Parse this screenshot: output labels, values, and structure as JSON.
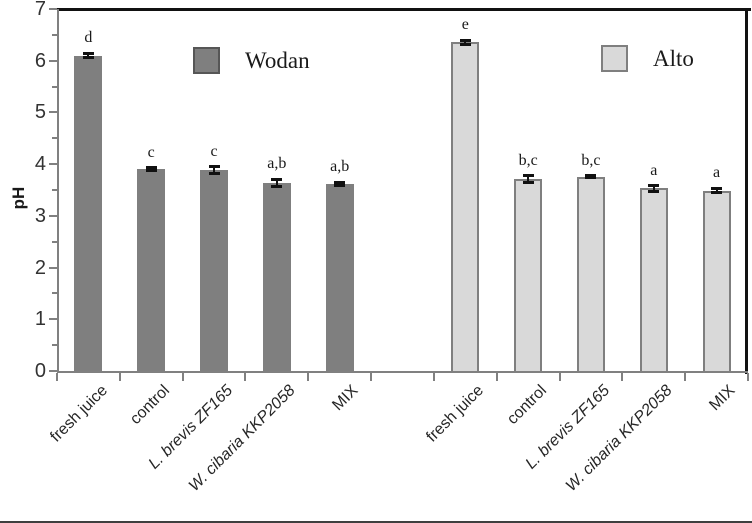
{
  "chart_data": {
    "type": "bar",
    "title": "",
    "xlabel": "",
    "ylabel": "pH",
    "ylim": [
      0,
      7
    ],
    "yticks": [
      0,
      1,
      2,
      3,
      4,
      5,
      6,
      7
    ],
    "y_minor_tick_step": 0.5,
    "grid": false,
    "legend_position": "inside-top",
    "categories": [
      "fresh juice",
      "control",
      "L. brevis ZF165",
      "W. cibaria KKP2058",
      "MIX"
    ],
    "categories_italic": [
      false,
      false,
      true,
      true,
      false
    ],
    "series": [
      {
        "name": "Wodan",
        "fill_color": "#7f7f7f",
        "border_color": "#7f7f7f",
        "legend_border_color": "#565656",
        "values": [
          6.1,
          3.9,
          3.88,
          3.64,
          3.62
        ],
        "errors": [
          0.04,
          0.03,
          0.07,
          0.07,
          0.03
        ],
        "sig_letters": [
          "d",
          "c",
          "c",
          "a,b",
          "a,b"
        ]
      },
      {
        "name": "Alto",
        "fill_color": "#d9d9d9",
        "border_color": "#7f7f7f",
        "legend_border_color": "#7f7f7f",
        "values": [
          6.36,
          3.71,
          3.76,
          3.53,
          3.49
        ],
        "errors": [
          0.04,
          0.07,
          0.02,
          0.05,
          0.04
        ],
        "sig_letters": [
          "e",
          "b,c",
          "b,c",
          "a",
          "a"
        ]
      }
    ]
  }
}
